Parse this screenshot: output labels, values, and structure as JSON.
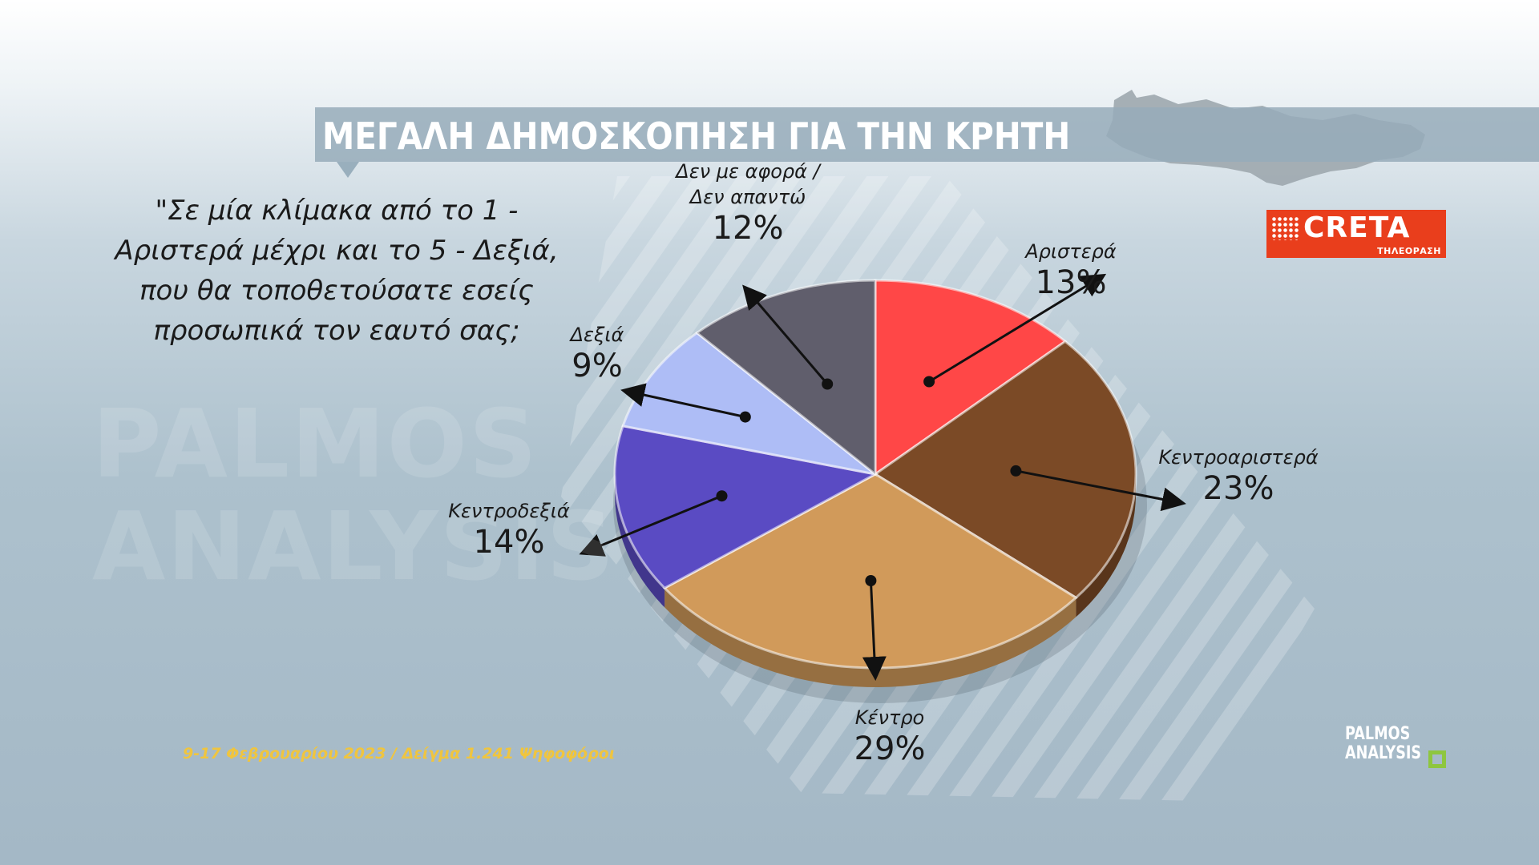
{
  "header": {
    "title": "ΜΕΓΑΛΗ ΔΗΜΟΣΚΟΠΗΣΗ ΓΙΑ ΤΗΝ ΚΡΗΤΗ"
  },
  "question": "\"Σε μία κλίμακα από το 1 - Αριστερά μέχρι και το 5 - Δεξιά, που θα τοποθετούσατε εσείς προσωπικά τον εαυτό σας;",
  "footer": {
    "date_sample": "9-17 Φεβρουαρίου 2023 / Δείγμα 1.241 Ψηφοφόροι"
  },
  "logos": {
    "creta_word": "CRETA",
    "creta_sub": "ΤΗΛΕΟΡΑΣΗ",
    "palmos_line1": "PALMOS",
    "palmos_line2": "ANALYSIS",
    "watermark_line1": "PALMOS",
    "watermark_line2": "ANALYSIS"
  },
  "chart_data": {
    "type": "pie",
    "title": "",
    "slices": [
      {
        "label": "Αριστερά",
        "value": 13,
        "display": "13%",
        "color": "#ff4747"
      },
      {
        "label": "Κεντροαριστερά",
        "value": 23,
        "display": "23%",
        "color": "#7b4a26"
      },
      {
        "label": "Κέντρο",
        "value": 29,
        "display": "29%",
        "color": "#d19a5a"
      },
      {
        "label": "Κεντροδεξιά",
        "value": 14,
        "display": "14%",
        "color": "#5a4bc3"
      },
      {
        "label": "Δεξιά",
        "value": 9,
        "display": "9%",
        "color": "#aebdf6"
      },
      {
        "label": "Δεν με αφορά / Δεν απαντώ",
        "value": 12,
        "display": "12%",
        "color": "#605e6c"
      }
    ]
  }
}
